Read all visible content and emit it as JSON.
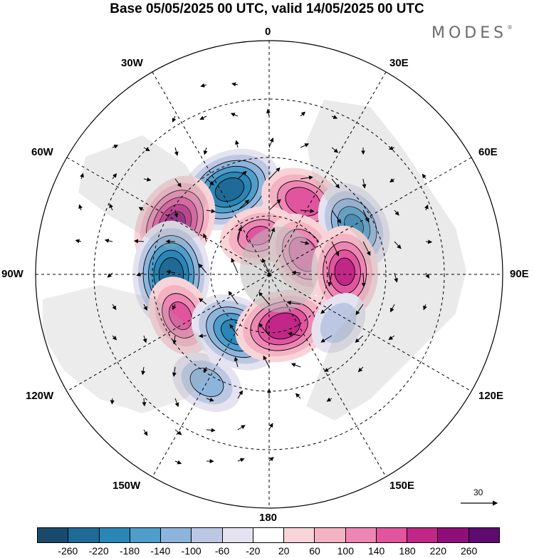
{
  "title": "Base 05/05/2025 00 UTC, valid 14/05/2025 00 UTC",
  "brand": "MODES",
  "brand_mark": "®",
  "longitude_labels": {
    "lon_0": "0",
    "lon_30e": "30E",
    "lon_60e": "60E",
    "lon_90e": "90E",
    "lon_120e": "120E",
    "lon_150e": "150E",
    "lon_180": "180",
    "lon_150w": "150W",
    "lon_120w": "120W",
    "lon_90w": "90W",
    "lon_60w": "60W",
    "lon_30w": "30W"
  },
  "reference_vector_label": "30",
  "colorbar": {
    "colors": [
      "#1a4a6b",
      "#1f6a96",
      "#2a86b6",
      "#4f9dcb",
      "#8db5dc",
      "#bcc8e3",
      "#e4e3ef",
      "#ffffff",
      "#f8d4d8",
      "#f4b3c3",
      "#ee86b4",
      "#e0559e",
      "#c02786",
      "#8e0f7a",
      "#5e0a6e"
    ],
    "labels": [
      "-260",
      "-220",
      "-180",
      "-140",
      "-100",
      "-60",
      "-20",
      "20",
      "60",
      "100",
      "140",
      "180",
      "220",
      "260"
    ]
  },
  "anomalies": [
    {
      "name": "low-north-atlantic",
      "lon": -25,
      "colat": 105,
      "value": -240
    },
    {
      "name": "high-north-atlantic-west",
      "lon": -62,
      "colat": 120,
      "value": 230
    },
    {
      "name": "high-europe",
      "lon": 25,
      "colat": 90,
      "value": 170
    },
    {
      "name": "low-west-pacific-east",
      "lon": 60,
      "colat": 110,
      "value": -180
    },
    {
      "name": "high-asia-small",
      "lon": -15,
      "colat": 45,
      "value": 140
    },
    {
      "name": "high-north-sibera",
      "lon": 60,
      "colat": 45,
      "value": 170
    },
    {
      "name": "high-central-asia",
      "lon": 88,
      "colat": 85,
      "value": 190
    },
    {
      "name": "low-canada",
      "lon": -90,
      "colat": 110,
      "value": -250
    },
    {
      "name": "high-pacific-west",
      "lon": -115,
      "colat": 110,
      "value": 150
    },
    {
      "name": "low-alaska-sea",
      "lon": -150,
      "colat": 75,
      "value": -200
    },
    {
      "name": "high-bering",
      "lon": 165,
      "colat": 60,
      "value": 210
    },
    {
      "name": "low-pacific-south",
      "lon": -150,
      "colat": 140,
      "value": -120
    },
    {
      "name": "low-east-asia",
      "lon": 125,
      "colat": 95,
      "value": -90
    }
  ]
}
